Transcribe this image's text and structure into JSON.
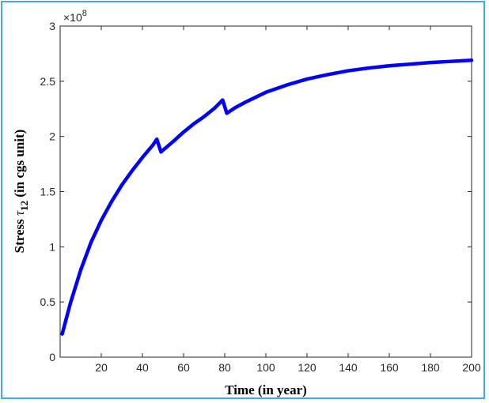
{
  "chart_data": {
    "type": "line",
    "xlabel": "Time (in year)",
    "ylabel_prefix": "Stress ",
    "ylabel_symbol": "τ",
    "ylabel_subscript": "12",
    "ylabel_suffix": " (in cgs unit)",
    "y_exponent_base": "×10",
    "y_exponent_power": "8",
    "xlim": [
      0,
      200
    ],
    "ylim": [
      0,
      3
    ],
    "xticks": [
      20,
      40,
      60,
      80,
      100,
      120,
      140,
      160,
      180,
      200
    ],
    "yticks": [
      0,
      0.5,
      1,
      1.5,
      2,
      2.5,
      3
    ],
    "line_color": "#0000ff",
    "series": [
      {
        "x": [
          1,
          5,
          10,
          15,
          20,
          25,
          30,
          35,
          40,
          45,
          47,
          49,
          55,
          60,
          65,
          70,
          75,
          79,
          81,
          85,
          90,
          100,
          110,
          120,
          130,
          140,
          150,
          160,
          170,
          180,
          190,
          200
        ],
        "y": [
          0.21,
          0.49,
          0.79,
          1.04,
          1.24,
          1.41,
          1.56,
          1.69,
          1.81,
          1.92,
          1.975,
          1.86,
          1.955,
          2.04,
          2.115,
          2.18,
          2.255,
          2.33,
          2.21,
          2.26,
          2.31,
          2.4,
          2.465,
          2.52,
          2.56,
          2.595,
          2.62,
          2.64,
          2.655,
          2.67,
          2.68,
          2.69
        ]
      }
    ]
  }
}
